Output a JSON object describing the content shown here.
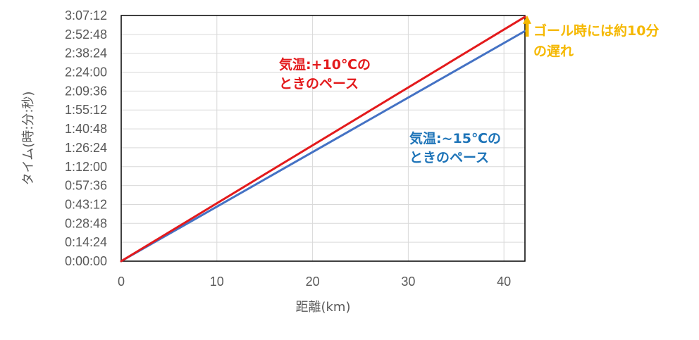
{
  "chart_data": {
    "type": "line",
    "xlabel": "距離(km)",
    "ylabel": "タイム(時:分:秒)",
    "xlim": [
      0,
      42.195
    ],
    "ylim_seconds": [
      0,
      11232
    ],
    "x_ticks": [
      0,
      10,
      20,
      30,
      40
    ],
    "y_tick_labels": [
      "0:00:00",
      "0:14:24",
      "0:28:48",
      "0:43:12",
      "0:57:36",
      "1:12:00",
      "1:26:24",
      "1:40:48",
      "1:55:12",
      "2:09:36",
      "2:24:00",
      "2:38:24",
      "2:52:48",
      "3:07:12"
    ],
    "grid": true,
    "series": [
      {
        "name": "気温:~15℃のときのペース",
        "color": "#4472C4",
        "x": [
          0,
          42.195
        ],
        "y_seconds": [
          0,
          10520
        ]
      },
      {
        "name": "気温:+10℃のときのペース",
        "color": "#E31A1C",
        "x": [
          0,
          42.195
        ],
        "y_seconds": [
          0,
          11170
        ]
      }
    ],
    "annotations": [
      {
        "lines": [
          "気温:+10℃の",
          "ときのペース"
        ],
        "color": "#E31A1C"
      },
      {
        "lines": [
          "気温:~15℃の",
          "ときのペース"
        ],
        "color": "#1E74B8"
      },
      {
        "lines": [
          "ゴール時には約10分",
          "の遅れ"
        ],
        "color": "#F5B800"
      }
    ]
  }
}
